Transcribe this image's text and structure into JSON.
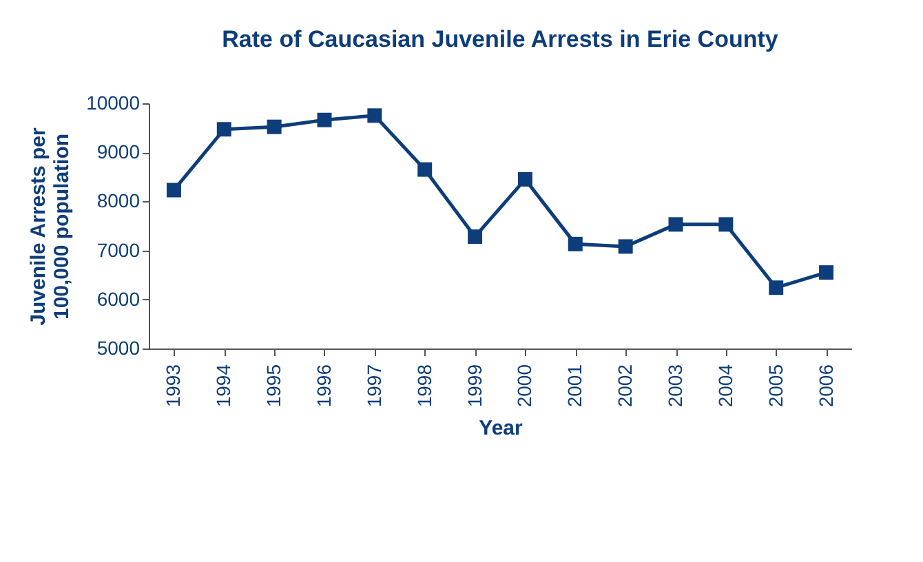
{
  "chart_data": {
    "type": "line",
    "title": "Rate of Caucasian Juvenile Arrests in Erie County",
    "xlabel": "Year",
    "ylabel": "Juvenile Arrests per 100,000 population",
    "categories": [
      "1993",
      "1994",
      "1995",
      "1996",
      "1997",
      "1998",
      "1999",
      "2000",
      "2001",
      "2002",
      "2003",
      "2004",
      "2005",
      "2006"
    ],
    "series": [
      {
        "color": "#0d3d7a",
        "values": [
          8230,
          9470,
          9520,
          9660,
          9750,
          8650,
          7280,
          8450,
          7130,
          7080,
          7530,
          7530,
          6240,
          6550
        ]
      }
    ],
    "ylim": [
      5000,
      10000
    ],
    "yticks": [
      5000,
      6000,
      7000,
      8000,
      9000,
      10000
    ],
    "grid": false,
    "marker": "square",
    "line_style": "solid"
  }
}
